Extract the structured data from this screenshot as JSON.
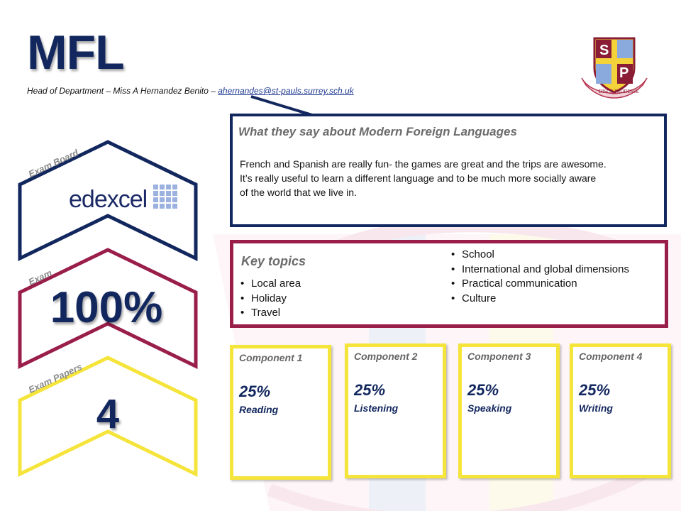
{
  "header": {
    "title": "MFL",
    "hod_prefix": "Head of Department – Miss A Hernandez Benito – ",
    "hod_email": "ahernandes@st-pauls.surrey.sch.uk"
  },
  "logo": {
    "letters": [
      "S",
      "P"
    ],
    "motto": "DISCE PRODESSE"
  },
  "quote": {
    "title": "What they say about Modern Foreign Languages",
    "lines": [
      "French and Spanish are really fun- the games are great and the trips are awesome.",
      "It’s really useful to learn a different language and to be much more socially aware",
      "of the world that we live in."
    ]
  },
  "topics": {
    "title": "Key topics",
    "left": [
      "Local area",
      "Holiday",
      "Travel"
    ],
    "right": [
      "School",
      "International and global dimensions",
      "Practical communication",
      "Culture"
    ]
  },
  "badges": {
    "exam_board": {
      "label": "Exam Board",
      "value": "edexcel"
    },
    "exam": {
      "label": "Exam",
      "value": "100%"
    },
    "papers": {
      "label": "Exam Papers",
      "value": "4"
    }
  },
  "components": [
    {
      "title": "Component 1",
      "percent": "25%",
      "skill": "Reading"
    },
    {
      "title": "Component 2",
      "percent": "25%",
      "skill": "Listening"
    },
    {
      "title": "Component 3",
      "percent": "25%",
      "skill": "Speaking"
    },
    {
      "title": "Component 4",
      "percent": "25%",
      "skill": "Writing"
    }
  ],
  "colors": {
    "navy": "#12275e",
    "maroon": "#9a1e4a",
    "yellow": "#f5e43a"
  }
}
